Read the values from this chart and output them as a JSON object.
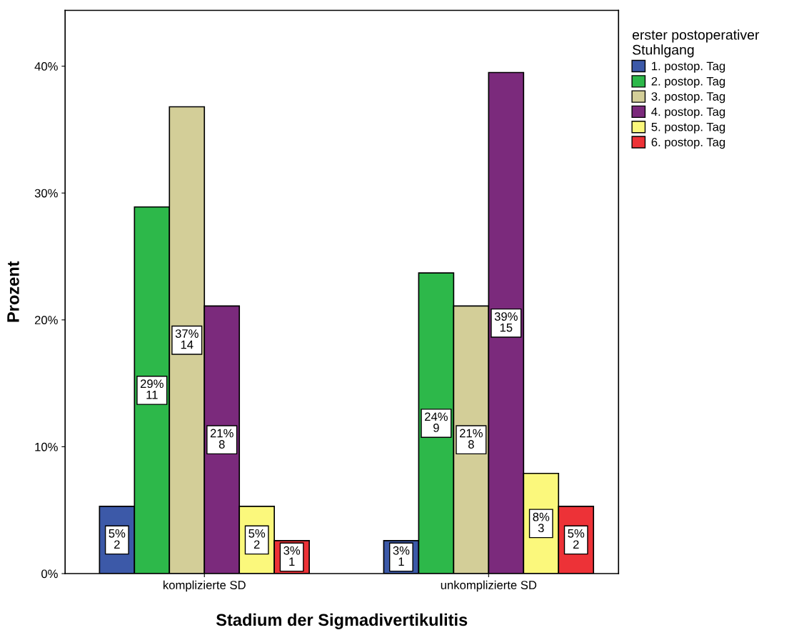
{
  "chart_data": {
    "type": "bar",
    "xlabel": "Stadium der Sigmadivertikulitis",
    "ylabel": "Prozent",
    "legend_title": "erster postoperativer\nStuhlgang",
    "categories": [
      "komplizierte SD",
      "unkomplizierte SD"
    ],
    "series": [
      {
        "name": "1. postop. Tag",
        "color": "#3c59a8",
        "values": [
          5.3,
          2.6
        ],
        "value_labels": [
          "5%\n2",
          "3%\n1"
        ]
      },
      {
        "name": "2. postop. Tag",
        "color": "#2db84a",
        "values": [
          28.9,
          23.7
        ],
        "value_labels": [
          "29%\n11",
          "24%\n9"
        ]
      },
      {
        "name": "3. postop. Tag",
        "color": "#d3ce98",
        "values": [
          36.8,
          21.1
        ],
        "value_labels": [
          "37%\n14",
          "21%\n8"
        ]
      },
      {
        "name": "4. postop. Tag",
        "color": "#7b2a7c",
        "values": [
          21.1,
          39.5
        ],
        "value_labels": [
          "21%\n8",
          "39%\n15"
        ]
      },
      {
        "name": "5. postop. Tag",
        "color": "#fbf87c",
        "values": [
          5.3,
          7.9
        ],
        "value_labels": [
          "5%\n2",
          "8%\n3"
        ]
      },
      {
        "name": "6. postop. Tag",
        "color": "#ed3237",
        "values": [
          2.6,
          5.3
        ],
        "value_labels": [
          "3%\n1",
          "5%\n2"
        ]
      }
    ],
    "ylim": [
      0,
      44.4
    ],
    "yticks": [
      {
        "value": 0,
        "label": "0%"
      },
      {
        "value": 10,
        "label": "10%"
      },
      {
        "value": 20,
        "label": "20%"
      },
      {
        "value": 30,
        "label": "30%"
      },
      {
        "value": 40,
        "label": "40%"
      }
    ],
    "grid": false,
    "legend": "top right"
  }
}
